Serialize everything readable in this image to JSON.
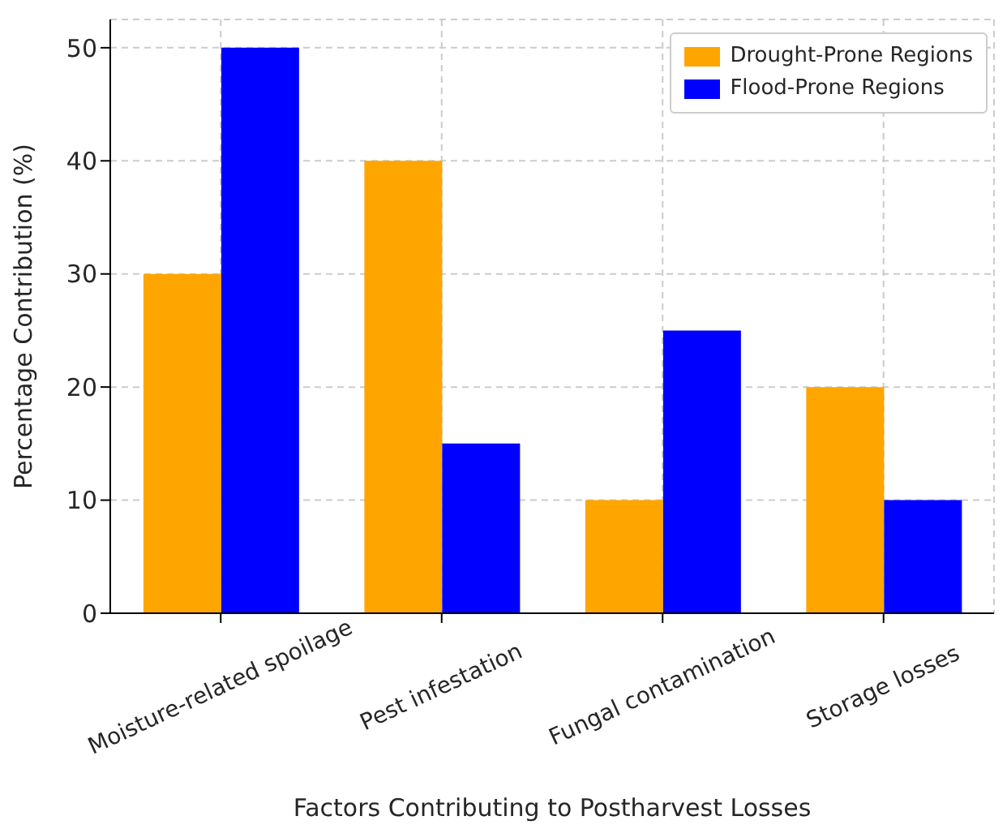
{
  "chart_data": {
    "type": "bar",
    "xlabel": "Factors Contributing to Postharvest Losses",
    "ylabel": "Percentage Contribution (%)",
    "categories": [
      "Moisture-related spoilage",
      "Pest infestation",
      "Fungal contamination",
      "Storage losses"
    ],
    "series": [
      {
        "name": "Drought-Prone Regions",
        "color": "#ffa500",
        "values": [
          30,
          40,
          10,
          20
        ]
      },
      {
        "name": "Flood-Prone Regions",
        "color": "#0000ff",
        "values": [
          50,
          15,
          25,
          10
        ]
      }
    ],
    "ylim": [
      0,
      52.5
    ],
    "yticks": [
      0,
      10,
      20,
      30,
      40,
      50
    ],
    "grid": true,
    "legend": "top right"
  }
}
